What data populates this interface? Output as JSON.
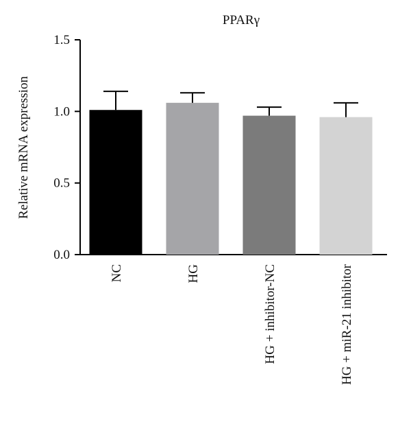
{
  "chart_data": {
    "type": "bar",
    "title": "PPARγ",
    "xlabel": "",
    "ylabel": "Relative mRNA expression",
    "ylim": [
      0,
      1.5
    ],
    "yticks": [
      "0.0",
      "0.5",
      "1.0",
      "1.5"
    ],
    "ytick_values": [
      0,
      0.5,
      1.0,
      1.5
    ],
    "categories": [
      "NC",
      "HG",
      "HG + inhibitor-NC",
      "HG + miR-21 inhibitor"
    ],
    "values": [
      1.01,
      1.06,
      0.97,
      0.96
    ],
    "error_upper": [
      0.13,
      0.07,
      0.06,
      0.1
    ],
    "colors": [
      "#000000",
      "#a5a5a8",
      "#7b7b7b",
      "#d3d3d3"
    ],
    "grid": false,
    "legend": "none"
  }
}
